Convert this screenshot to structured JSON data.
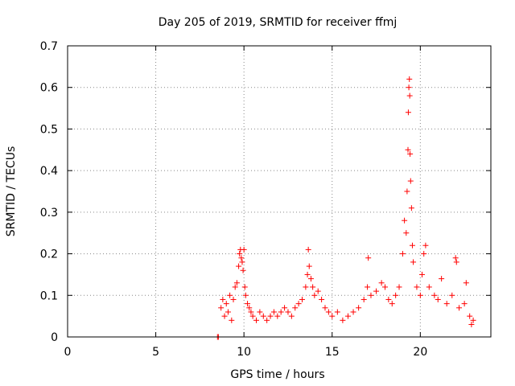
{
  "chart_data": {
    "type": "scatter",
    "title": "Day 205 of 2019, SRMTID for receiver ffmj",
    "xlabel": "GPS time / hours",
    "ylabel": "SRMTID / TECUs",
    "xlim": [
      0,
      24
    ],
    "ylim": [
      0,
      0.7
    ],
    "xticks": [
      0,
      5,
      10,
      15,
      20
    ],
    "xtick_labels": [
      "0",
      "5",
      "10",
      "15",
      "20"
    ],
    "yticks": [
      0,
      0.1,
      0.2,
      0.3,
      0.4,
      0.5,
      0.6,
      0.7
    ],
    "ytick_labels": [
      "0",
      "0.1",
      "0.2",
      "0.3",
      "0.4",
      "0.5",
      "0.6",
      "0.7"
    ],
    "grid": true,
    "marker": "+",
    "series": [
      {
        "name": "SRMTID",
        "color": "#ff0000",
        "points": [
          [
            8.5,
            0.0
          ],
          [
            8.55,
            0.0
          ],
          [
            8.7,
            0.07
          ],
          [
            8.8,
            0.09
          ],
          [
            8.9,
            0.05
          ],
          [
            9.0,
            0.08
          ],
          [
            9.1,
            0.06
          ],
          [
            9.2,
            0.1
          ],
          [
            9.3,
            0.04
          ],
          [
            9.4,
            0.09
          ],
          [
            9.5,
            0.12
          ],
          [
            9.6,
            0.13
          ],
          [
            9.7,
            0.17
          ],
          [
            9.75,
            0.2
          ],
          [
            9.8,
            0.21
          ],
          [
            9.85,
            0.19
          ],
          [
            9.9,
            0.18
          ],
          [
            9.95,
            0.16
          ],
          [
            10.0,
            0.21
          ],
          [
            10.05,
            0.12
          ],
          [
            10.1,
            0.1
          ],
          [
            10.2,
            0.08
          ],
          [
            10.3,
            0.07
          ],
          [
            10.4,
            0.06
          ],
          [
            10.5,
            0.05
          ],
          [
            10.7,
            0.04
          ],
          [
            10.9,
            0.06
          ],
          [
            11.1,
            0.05
          ],
          [
            11.3,
            0.04
          ],
          [
            11.5,
            0.05
          ],
          [
            11.7,
            0.06
          ],
          [
            11.9,
            0.05
          ],
          [
            12.1,
            0.06
          ],
          [
            12.3,
            0.07
          ],
          [
            12.5,
            0.06
          ],
          [
            12.7,
            0.05
          ],
          [
            12.9,
            0.07
          ],
          [
            13.1,
            0.08
          ],
          [
            13.3,
            0.09
          ],
          [
            13.5,
            0.12
          ],
          [
            13.6,
            0.15
          ],
          [
            13.65,
            0.21
          ],
          [
            13.7,
            0.17
          ],
          [
            13.8,
            0.14
          ],
          [
            13.9,
            0.12
          ],
          [
            14.0,
            0.1
          ],
          [
            14.2,
            0.11
          ],
          [
            14.4,
            0.09
          ],
          [
            14.6,
            0.07
          ],
          [
            14.8,
            0.06
          ],
          [
            15.0,
            0.05
          ],
          [
            15.3,
            0.06
          ],
          [
            15.6,
            0.04
          ],
          [
            15.9,
            0.05
          ],
          [
            16.2,
            0.06
          ],
          [
            16.5,
            0.07
          ],
          [
            16.8,
            0.09
          ],
          [
            17.0,
            0.12
          ],
          [
            17.05,
            0.19
          ],
          [
            17.2,
            0.1
          ],
          [
            17.5,
            0.11
          ],
          [
            17.8,
            0.13
          ],
          [
            18.0,
            0.12
          ],
          [
            18.2,
            0.09
          ],
          [
            18.4,
            0.08
          ],
          [
            18.6,
            0.1
          ],
          [
            18.8,
            0.12
          ],
          [
            19.0,
            0.2
          ],
          [
            19.1,
            0.28
          ],
          [
            19.2,
            0.25
          ],
          [
            19.25,
            0.35
          ],
          [
            19.3,
            0.45
          ],
          [
            19.32,
            0.54
          ],
          [
            19.35,
            0.6
          ],
          [
            19.38,
            0.62
          ],
          [
            19.4,
            0.58
          ],
          [
            19.42,
            0.44
          ],
          [
            19.45,
            0.375
          ],
          [
            19.5,
            0.31
          ],
          [
            19.55,
            0.22
          ],
          [
            19.6,
            0.18
          ],
          [
            19.8,
            0.12
          ],
          [
            20.0,
            0.1
          ],
          [
            20.1,
            0.15
          ],
          [
            20.2,
            0.2
          ],
          [
            20.3,
            0.22
          ],
          [
            20.5,
            0.12
          ],
          [
            20.8,
            0.1
          ],
          [
            21.0,
            0.09
          ],
          [
            21.2,
            0.14
          ],
          [
            21.5,
            0.08
          ],
          [
            21.8,
            0.1
          ],
          [
            22.0,
            0.19
          ],
          [
            22.05,
            0.18
          ],
          [
            22.2,
            0.07
          ],
          [
            22.5,
            0.08
          ],
          [
            22.6,
            0.13
          ],
          [
            22.8,
            0.05
          ],
          [
            22.9,
            0.03
          ],
          [
            23.0,
            0.04
          ]
        ]
      }
    ]
  }
}
